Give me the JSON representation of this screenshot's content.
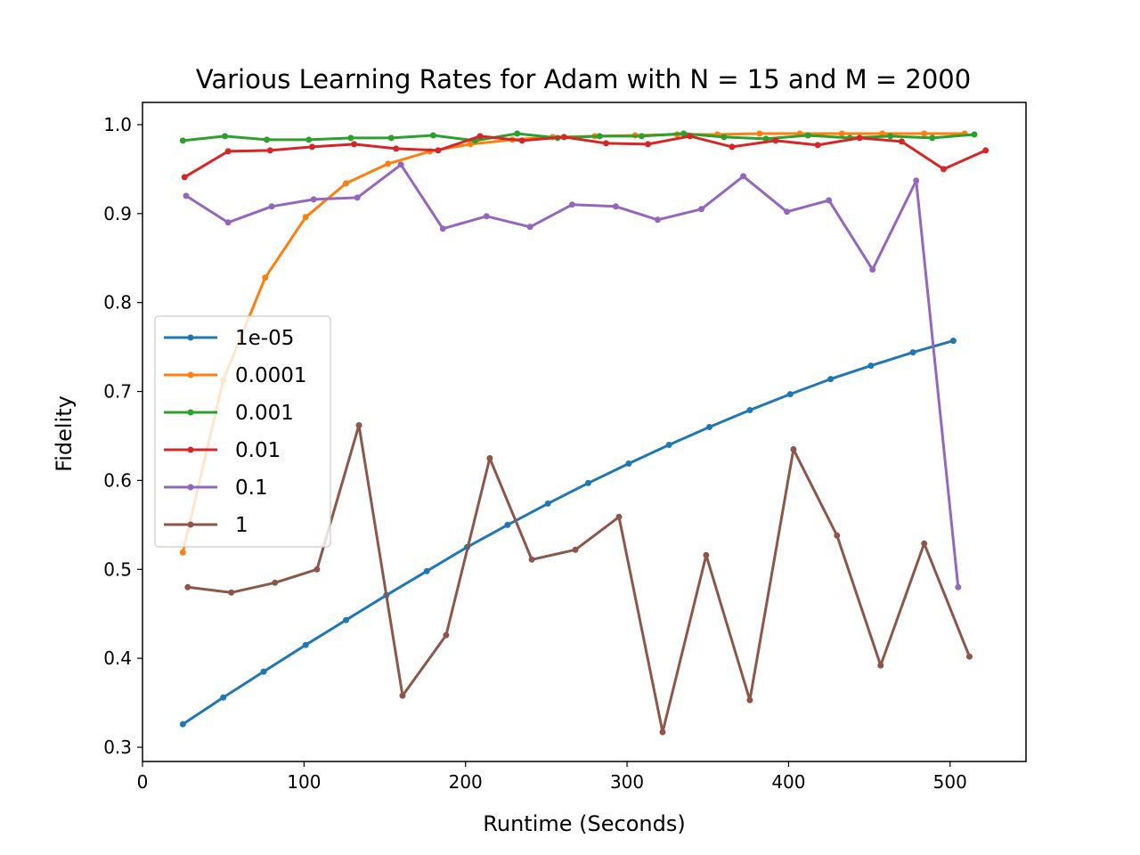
{
  "chart_data": {
    "type": "line",
    "title": "Various Learning Rates for Adam with N = 15 and M = 2000",
    "xlabel": "Runtime (Seconds)",
    "ylabel": "Fidelity",
    "xlim": [
      0,
      547
    ],
    "ylim": [
      0.284,
      1.025
    ],
    "xticks": [
      0,
      100,
      200,
      300,
      400,
      500
    ],
    "xtick_labels": [
      "0",
      "100",
      "200",
      "300",
      "400",
      "500"
    ],
    "yticks": [
      0.3,
      0.4,
      0.5,
      0.6,
      0.7,
      0.8,
      0.9,
      1.0
    ],
    "ytick_labels": [
      "0.3",
      "0.4",
      "0.5",
      "0.6",
      "0.7",
      "0.8",
      "0.9",
      "1.0"
    ],
    "grid": false,
    "legend_position": "center-left",
    "series": [
      {
        "name": "1e-05",
        "color": "#1f77b4",
        "x": [
          25,
          50,
          75,
          101,
          126,
          151,
          176,
          201,
          226,
          251,
          276,
          301,
          326,
          351,
          376,
          401,
          426,
          451,
          477,
          502
        ],
        "y": [
          0.326,
          0.356,
          0.385,
          0.415,
          0.443,
          0.471,
          0.498,
          0.525,
          0.55,
          0.574,
          0.597,
          0.619,
          0.64,
          0.66,
          0.679,
          0.697,
          0.714,
          0.729,
          0.744,
          0.757
        ]
      },
      {
        "name": "0.0001",
        "color": "#ff7f0e",
        "x": [
          25,
          50,
          76,
          101,
          126,
          152,
          178,
          203,
          229,
          254,
          280,
          305,
          331,
          356,
          382,
          407,
          433,
          458,
          484,
          509
        ],
        "y": [
          0.519,
          0.713,
          0.828,
          0.896,
          0.934,
          0.956,
          0.97,
          0.978,
          0.983,
          0.986,
          0.987,
          0.988,
          0.989,
          0.989,
          0.99,
          0.99,
          0.99,
          0.99,
          0.99,
          0.99
        ]
      },
      {
        "name": "0.001",
        "color": "#2ca02c",
        "x": [
          25,
          51,
          77,
          103,
          129,
          154,
          180,
          206,
          232,
          257,
          283,
          309,
          335,
          360,
          386,
          412,
          438,
          463,
          489,
          515
        ],
        "y": [
          0.982,
          0.987,
          0.983,
          0.983,
          0.985,
          0.985,
          0.988,
          0.982,
          0.99,
          0.985,
          0.987,
          0.987,
          0.99,
          0.986,
          0.984,
          0.988,
          0.985,
          0.987,
          0.985,
          0.989
        ]
      },
      {
        "name": "0.01",
        "color": "#d62728",
        "x": [
          26,
          53,
          79,
          105,
          131,
          157,
          183,
          209,
          235,
          261,
          287,
          313,
          339,
          365,
          392,
          418,
          444,
          470,
          496,
          522
        ],
        "y": [
          0.941,
          0.97,
          0.971,
          0.975,
          0.978,
          0.973,
          0.971,
          0.987,
          0.982,
          0.986,
          0.979,
          0.978,
          0.987,
          0.975,
          0.982,
          0.977,
          0.985,
          0.981,
          0.95,
          0.971
        ]
      },
      {
        "name": "0.1",
        "color": "#9467bd",
        "x": [
          27,
          53,
          80,
          106,
          133,
          160,
          186,
          213,
          240,
          266,
          293,
          319,
          346,
          372,
          399,
          425,
          452,
          479,
          505
        ],
        "y": [
          0.92,
          0.89,
          0.908,
          0.916,
          0.918,
          0.955,
          0.883,
          0.897,
          0.885,
          0.91,
          0.908,
          0.893,
          0.905,
          0.942,
          0.902,
          0.915,
          0.837,
          0.937,
          0.48
        ]
      },
      {
        "name": "1",
        "color": "#8c564b",
        "x": [
          28,
          55,
          82,
          108,
          134,
          161,
          188,
          215,
          241,
          268,
          295,
          322,
          349,
          376,
          403,
          430,
          457,
          484,
          512
        ],
        "y": [
          0.48,
          0.474,
          0.485,
          0.5,
          0.662,
          0.358,
          0.426,
          0.625,
          0.511,
          0.522,
          0.559,
          0.317,
          0.516,
          0.353,
          0.635,
          0.538,
          0.392,
          0.529,
          0.402
        ]
      }
    ]
  }
}
